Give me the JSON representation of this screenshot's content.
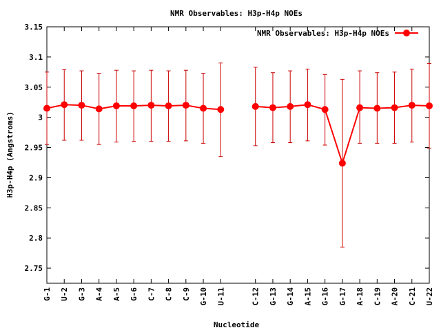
{
  "chart_data": {
    "type": "line",
    "title": "NMR Observables: H3p-H4p NOEs",
    "xlabel": "Nucleotide",
    "ylabel": "H3p-H4p (Angstroms)",
    "ylim": [
      2.725,
      3.15
    ],
    "yticks": [
      "2.75",
      "2.8",
      "2.85",
      "2.9",
      "2.95",
      "3",
      "3.05",
      "3.1",
      "3.15"
    ],
    "ytick_values": [
      2.75,
      2.8,
      2.85,
      2.9,
      2.95,
      3.0,
      3.05,
      3.1,
      3.15
    ],
    "categories": [
      "G-1",
      "U-2",
      "G-3",
      "A-4",
      "A-5",
      "G-6",
      "C-7",
      "C-8",
      "C-9",
      "G-10",
      "U-11",
      "",
      "C-12",
      "G-13",
      "G-14",
      "A-15",
      "G-16",
      "G-17",
      "A-18",
      "C-19",
      "A-20",
      "C-21",
      "U-22"
    ],
    "grid": false,
    "legend_position": "top-right",
    "colors": {
      "series": "#ff0000",
      "errorbar": "#cc0000",
      "axis": "#000000"
    },
    "series": [
      {
        "name": "NMR Observables: H3p-H4p NOEs",
        "values": [
          3.015,
          3.021,
          3.02,
          3.014,
          3.019,
          3.019,
          3.02,
          3.019,
          3.02,
          3.015,
          3.013,
          null,
          3.018,
          3.016,
          3.018,
          3.021,
          3.013,
          2.924,
          3.016,
          3.015,
          3.016,
          3.02,
          3.019
        ],
        "err_low": [
          2.955,
          2.962,
          2.962,
          2.955,
          2.959,
          2.96,
          2.96,
          2.96,
          2.961,
          2.957,
          2.935,
          null,
          2.953,
          2.958,
          2.958,
          2.961,
          2.954,
          2.785,
          2.957,
          2.957,
          2.957,
          2.959,
          2.949
        ],
        "err_high": [
          3.075,
          3.079,
          3.077,
          3.073,
          3.078,
          3.077,
          3.078,
          3.077,
          3.078,
          3.073,
          3.09,
          null,
          3.083,
          3.074,
          3.077,
          3.08,
          3.071,
          3.063,
          3.077,
          3.074,
          3.075,
          3.08,
          3.089
        ]
      }
    ]
  }
}
